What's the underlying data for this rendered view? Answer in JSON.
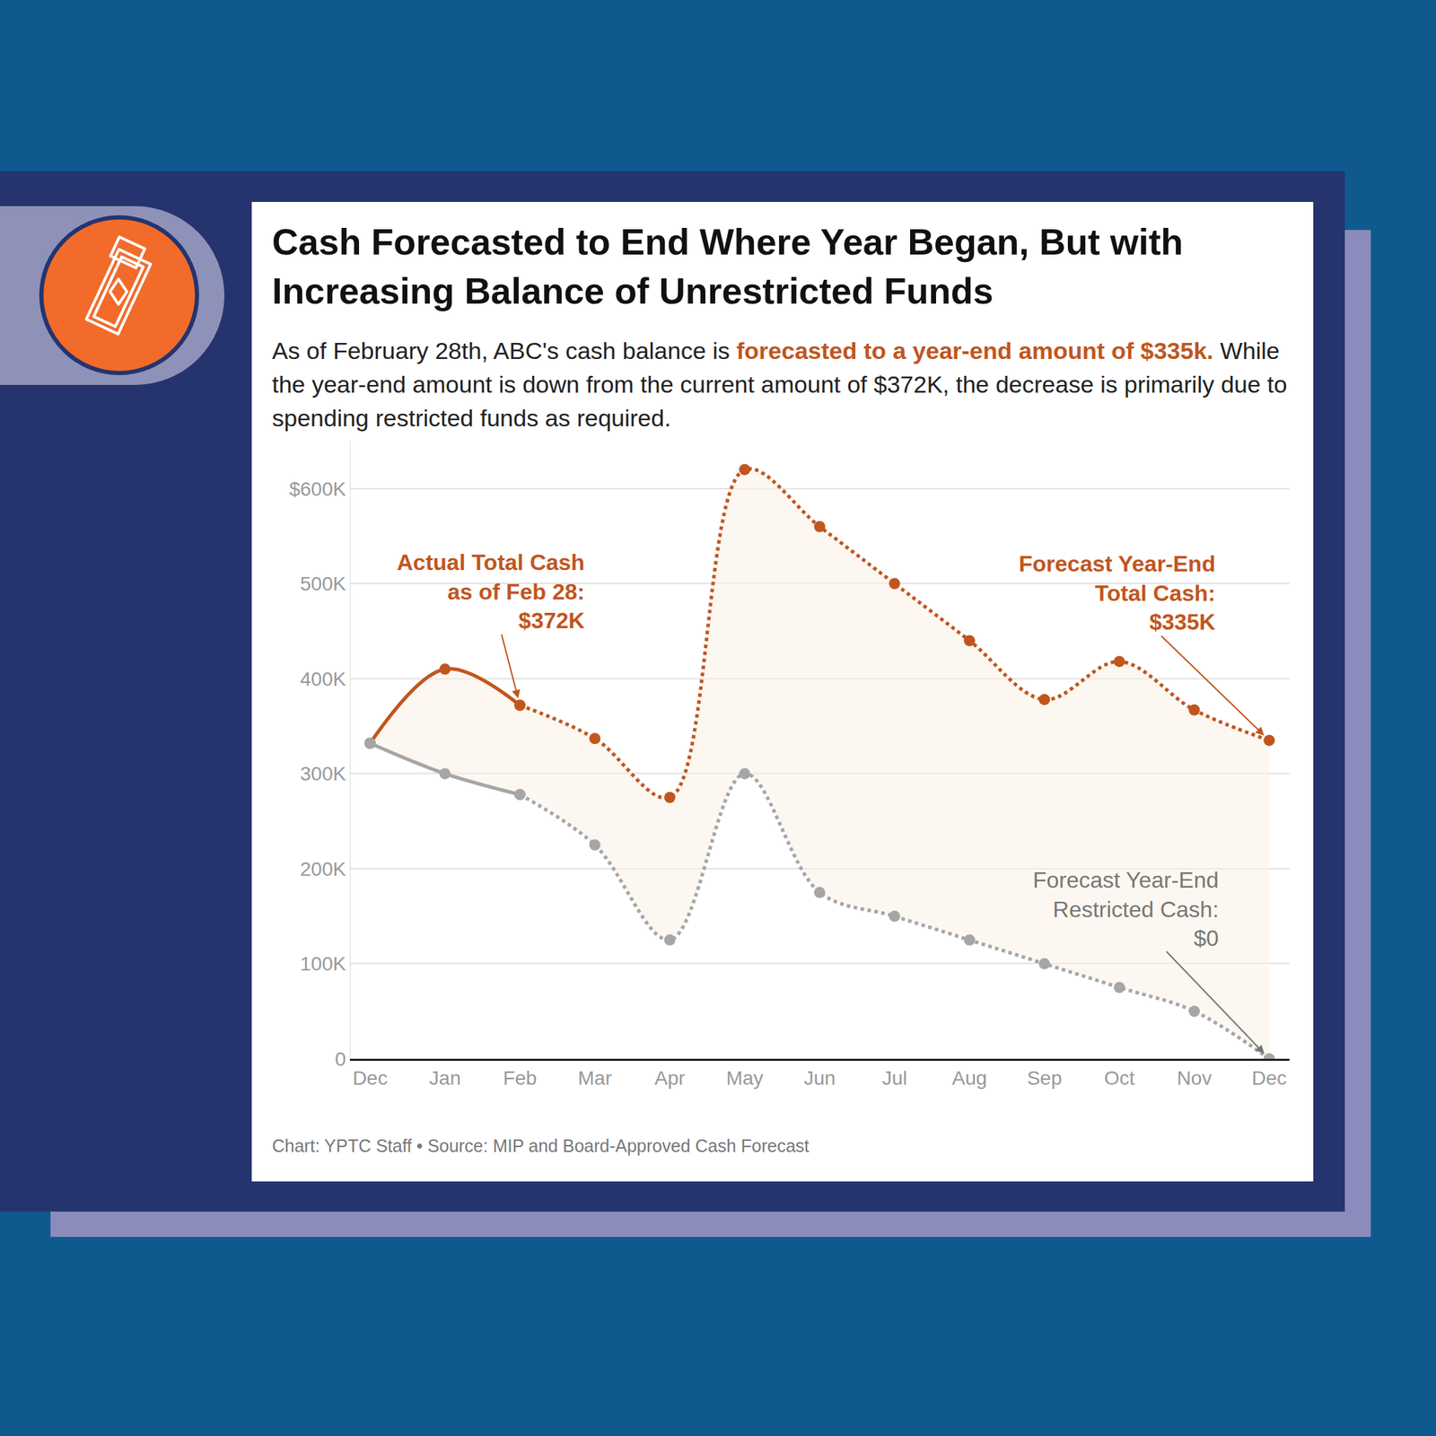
{
  "chart_data": {
    "type": "line",
    "title": "Cash Forecasted to End Where Year Began, But with Increasing Balance of Unrestricted Funds",
    "subtitle": "As of February 28th, ABC's cash balance is forecasted to a year-end amount of $335k. While the year-end amount is down from the current amount of $372K, the decrease is primarily due to spending restricted funds as required.",
    "subtitle_highlight": "forecasted to a year-end amount of $335k.",
    "source": "Chart: YPTC Staff • Source: MIP and Board-Approved Cash Forecast",
    "categories": [
      "Dec",
      "Jan",
      "Feb",
      "Mar",
      "Apr",
      "May",
      "Jun",
      "Jul",
      "Aug",
      "Sep",
      "Oct",
      "Nov",
      "Dec"
    ],
    "ylim": [
      0,
      650
    ],
    "yticks": [
      0,
      {
        "value": 100,
        "label": "100K"
      },
      {
        "value": 200,
        "label": "200K"
      },
      {
        "value": 300,
        "label": "300K"
      },
      {
        "value": 400,
        "label": "400K"
      },
      {
        "value": 500,
        "label": "500K"
      },
      {
        "value": 600,
        "label": "$600K"
      }
    ],
    "grid": true,
    "series": [
      {
        "color": "#c0561e",
        "line_style": "solid",
        "marker": "circle",
        "values": [
          332,
          410,
          372,
          null,
          null,
          null,
          null,
          null,
          null,
          null,
          null,
          null,
          null
        ]
      },
      {
        "color": "#c0561e",
        "line_style": "dotted",
        "marker": "circle",
        "values": [
          null,
          null,
          372,
          337,
          275,
          620,
          560,
          500,
          440,
          378,
          418,
          367,
          335
        ]
      },
      {
        "color": "#a6a6a6",
        "line_style": "solid",
        "marker": "circle",
        "values": [
          332,
          300,
          278,
          null,
          null,
          null,
          null,
          null,
          null,
          null,
          null,
          null,
          null
        ]
      },
      {
        "color": "#a6a6a6",
        "line_style": "dotted",
        "marker": "circle",
        "values": [
          null,
          null,
          278,
          225,
          125,
          300,
          175,
          150,
          125,
          100,
          75,
          50,
          0
        ]
      }
    ],
    "annotations": [
      {
        "text": [
          "Actual Total Cash",
          "as of Feb 28:",
          "$372K"
        ],
        "x": 2,
        "y": 372,
        "color": "#c0561e"
      },
      {
        "text": [
          "Forecast Year-End",
          "Total Cash:",
          "$335K"
        ],
        "x": 12,
        "y": 335,
        "color": "#c0561e"
      },
      {
        "text": [
          "Forecast Year-End",
          "Restricted Cash:",
          "$0"
        ],
        "x": 12,
        "y": 0,
        "color": "#777777"
      }
    ]
  }
}
